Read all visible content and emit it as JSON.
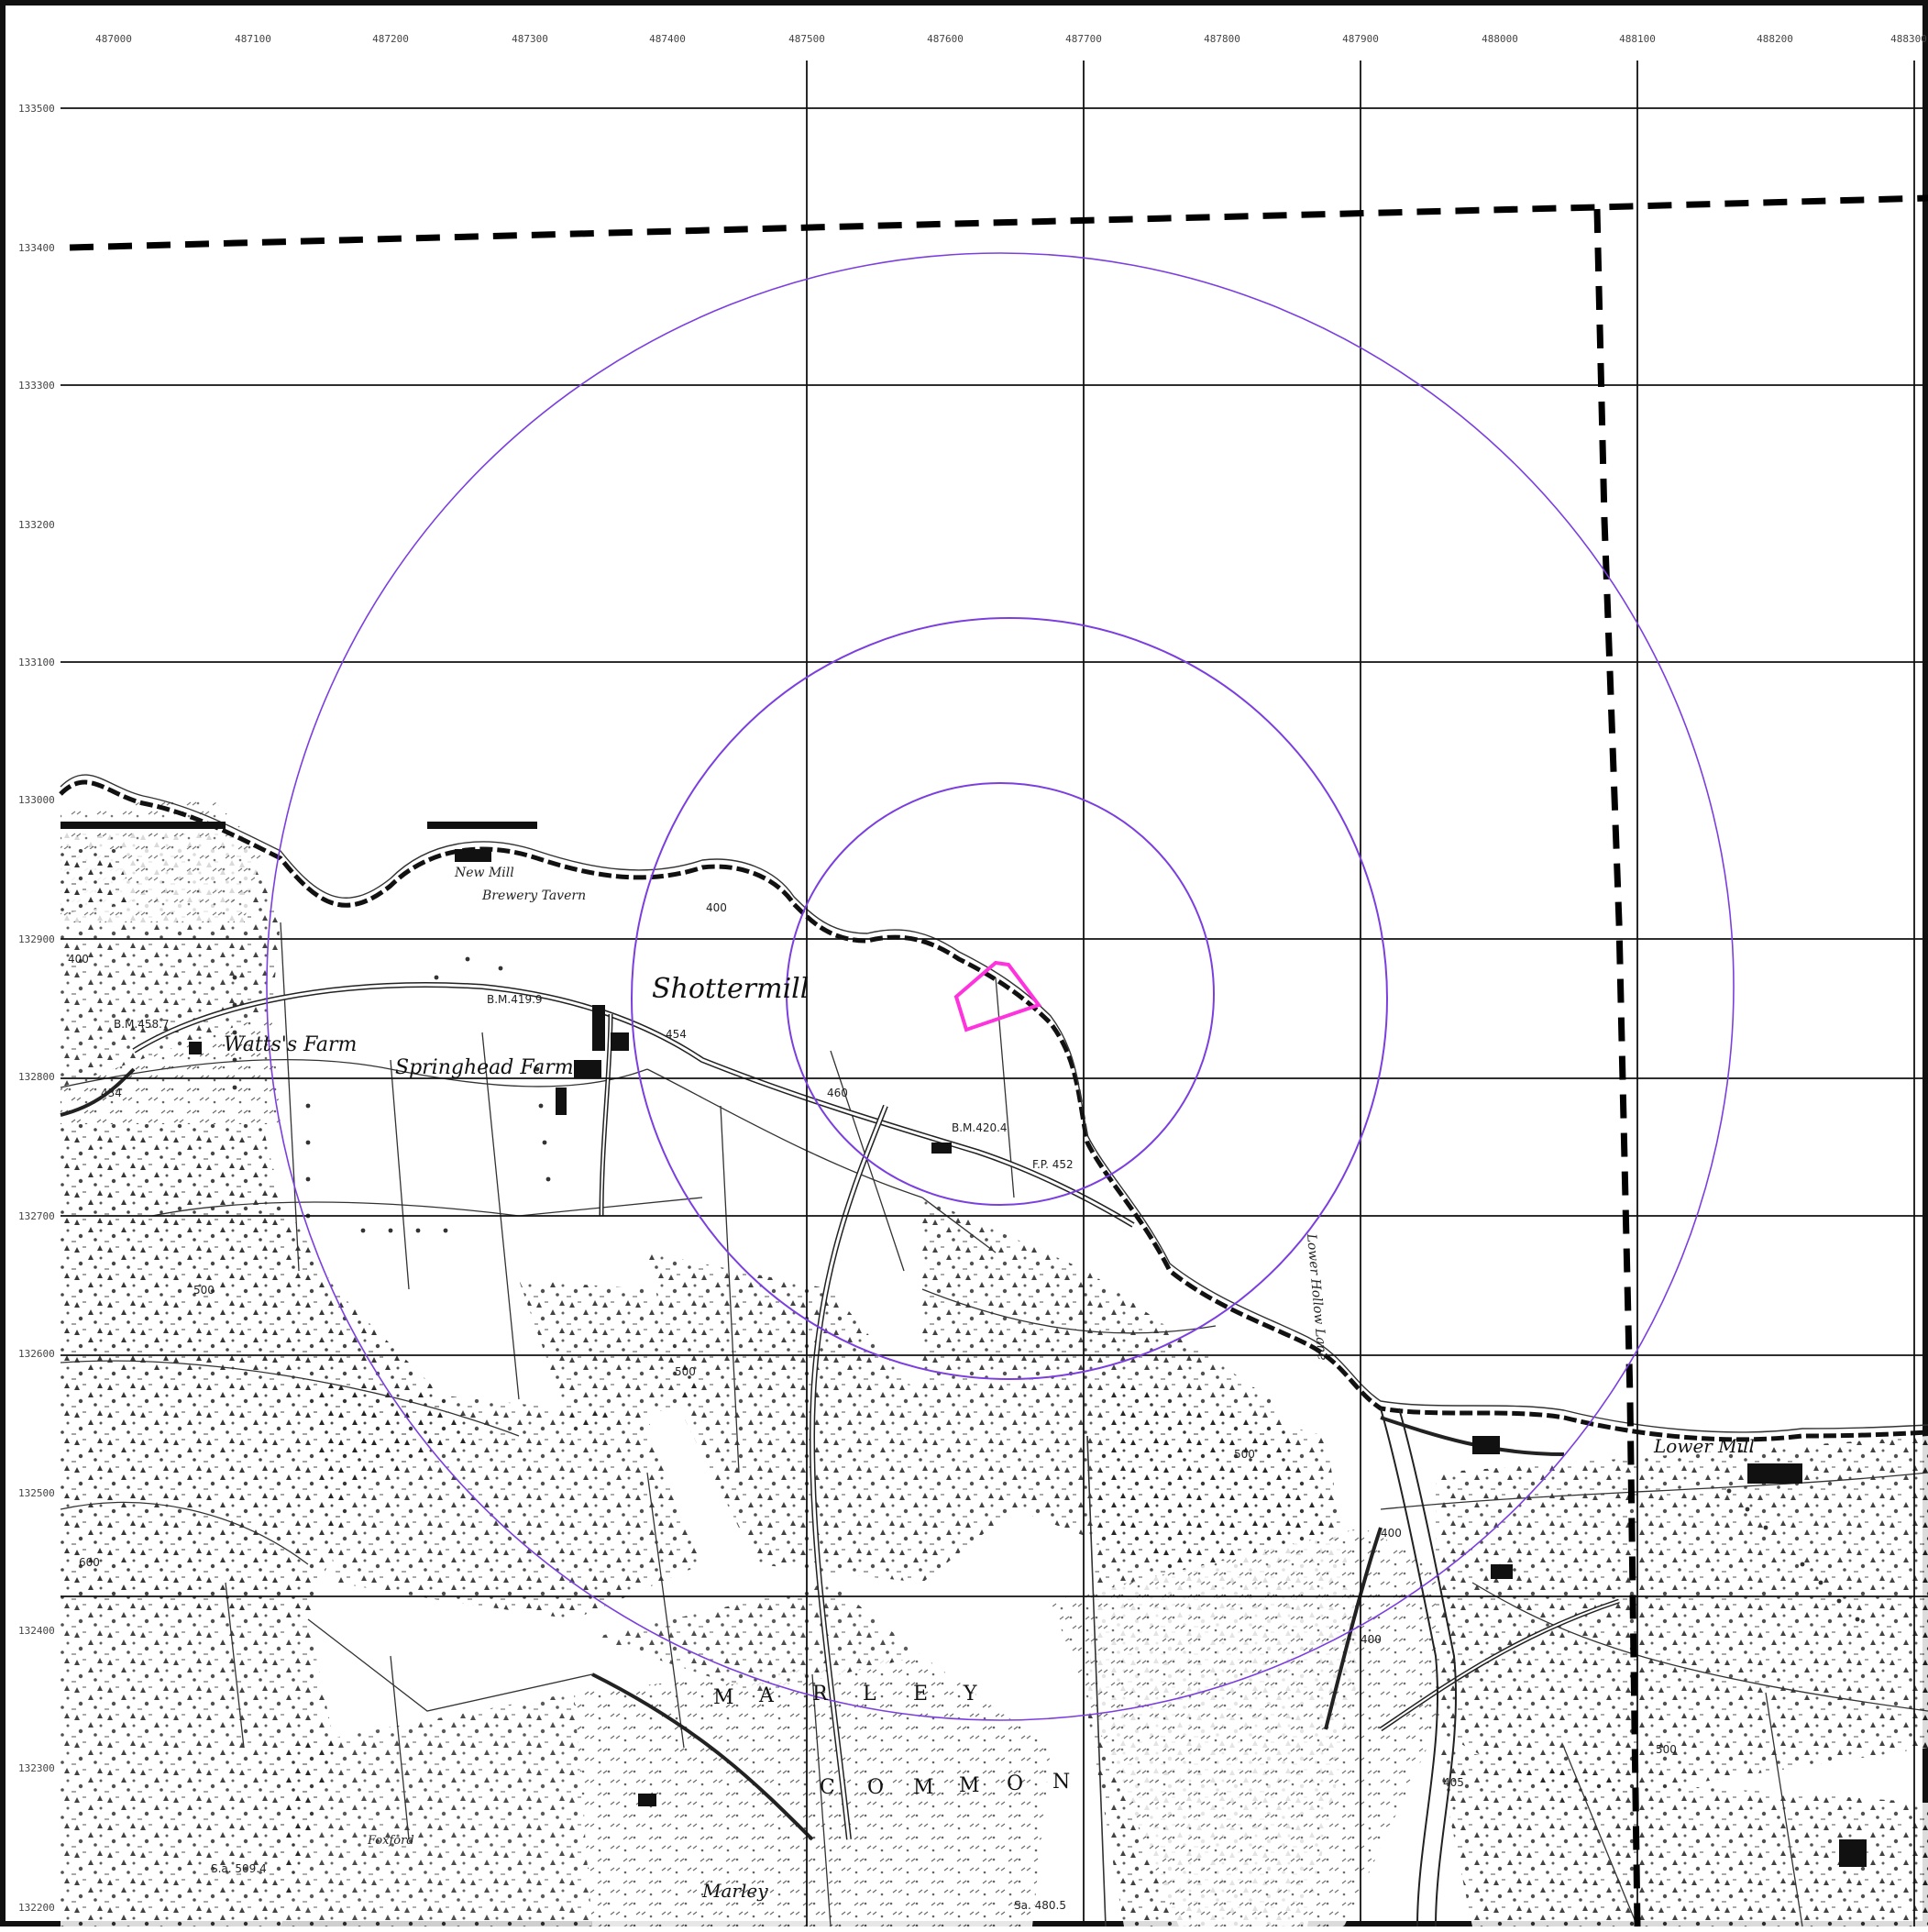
{
  "map": {
    "grid_top_labels": [
      "487000",
      "487100",
      "487200",
      "487300",
      "487400",
      "487500",
      "487600",
      "487700",
      "487800",
      "487900",
      "488000",
      "488100",
      "488200",
      "488300"
    ],
    "grid_left_labels": [
      "133500",
      "133400",
      "133300",
      "133200",
      "133100",
      "133000",
      "132900",
      "132800",
      "132700",
      "132600",
      "132500",
      "132400",
      "132300",
      "132200"
    ],
    "place_labels": [
      {
        "id": "shottermill",
        "text": "Shottermill"
      },
      {
        "id": "watts-farm",
        "text": "Watts's Farm"
      },
      {
        "id": "springhead-farm",
        "text": "Springhead Farm"
      },
      {
        "id": "new-mill",
        "text": "New Mill"
      },
      {
        "id": "brewery",
        "text": "Brewery Tavern"
      },
      {
        "id": "lower-mill",
        "text": "Lower Mill"
      },
      {
        "id": "marley-hamlet",
        "text": "Marley"
      },
      {
        "id": "lower-hollow",
        "text": "Lower Hollow Lane"
      },
      {
        "id": "foxford",
        "text": "Foxford"
      }
    ],
    "common_words": {
      "marley": [
        "M",
        "A",
        "R",
        "L",
        "E",
        "Y"
      ],
      "common": [
        "C",
        "O",
        "M",
        "M",
        "O",
        "N"
      ]
    },
    "spot_labels": [
      {
        "id": "bm-458",
        "text": "B.M.458.7"
      },
      {
        "id": "bm-419",
        "text": "B.M.419.9"
      },
      {
        "id": "bm-420",
        "text": "B.M.420.4"
      },
      {
        "id": "fp-452",
        "text": "F.P. 452"
      },
      {
        "id": "h400a",
        "text": "400"
      },
      {
        "id": "h400b",
        "text": "400"
      },
      {
        "id": "h400c",
        "text": "400"
      },
      {
        "id": "h400d",
        "text": "400"
      },
      {
        "id": "h500a",
        "text": "500"
      },
      {
        "id": "h500b",
        "text": "500"
      },
      {
        "id": "h500c",
        "text": "500"
      },
      {
        "id": "h500d",
        "text": "500"
      },
      {
        "id": "h600",
        "text": "600"
      },
      {
        "id": "h454",
        "text": "454"
      },
      {
        "id": "h460",
        "text": "460"
      },
      {
        "id": "h434",
        "text": "434"
      },
      {
        "id": "h405",
        "text": "405"
      },
      {
        "id": "sa-509",
        "text": "S.a. 509.4"
      },
      {
        "id": "sa-480",
        "text": "Sa. 480.5"
      }
    ],
    "colors": {
      "buffer_rings": "#7b3fe0",
      "site_boundary": "#ff33dd",
      "grid_lines": "#111111",
      "dashed_boundary": "#000000",
      "ink": "#1a1a1a"
    }
  }
}
